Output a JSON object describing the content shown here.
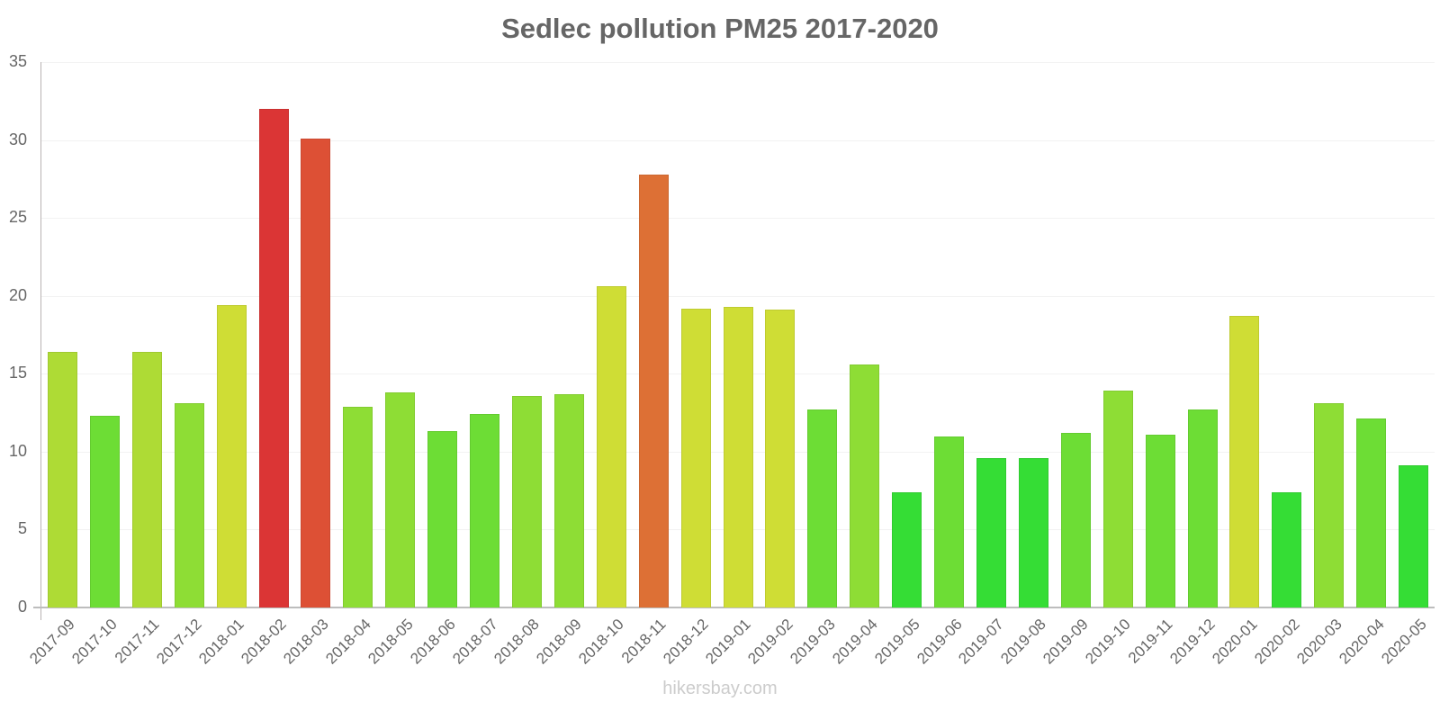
{
  "chart_data": {
    "type": "bar",
    "title": "Sedlec pollution PM25 2017-2020",
    "xlabel": "",
    "ylabel": "",
    "ylim": [
      0,
      35
    ],
    "yticks": [
      0,
      5,
      10,
      15,
      20,
      25,
      30,
      35
    ],
    "grid": true,
    "legend": null,
    "categories": [
      "2017-09",
      "2017-10",
      "2017-11",
      "2017-12",
      "2018-01",
      "2018-02",
      "2018-03",
      "2018-04",
      "2018-05",
      "2018-06",
      "2018-07",
      "2018-08",
      "2018-09",
      "2018-10",
      "2018-11",
      "2018-12",
      "2019-01",
      "2019-02",
      "2019-03",
      "2019-04",
      "2019-05",
      "2019-06",
      "2019-07",
      "2019-08",
      "2019-09",
      "2019-10",
      "2019-11",
      "2019-12",
      "2020-01",
      "2020-02",
      "2020-03",
      "2020-04",
      "2020-05"
    ],
    "values": [
      16.4,
      12.3,
      16.4,
      13.1,
      19.4,
      32.0,
      30.1,
      12.9,
      13.8,
      11.3,
      12.4,
      13.6,
      13.7,
      20.6,
      27.8,
      19.2,
      19.3,
      19.1,
      12.7,
      15.6,
      7.4,
      11.0,
      9.6,
      9.6,
      11.2,
      13.9,
      11.1,
      12.7,
      18.7,
      7.4,
      13.1,
      12.1,
      9.1
    ],
    "colors": [
      "#aedb35",
      "#6ddd35",
      "#aedb35",
      "#8edd35",
      "#cfdd35",
      "#db3535",
      "#dd5035",
      "#8edd35",
      "#8edd35",
      "#6ddd35",
      "#6ddd35",
      "#8edd35",
      "#8edd35",
      "#cfdd35",
      "#dd7035",
      "#cfdd35",
      "#cfdd35",
      "#cfdd35",
      "#6ddd35",
      "#8edd35",
      "#35dd35",
      "#6ddd35",
      "#35dd35",
      "#35dd35",
      "#6ddd35",
      "#8edd35",
      "#6ddd35",
      "#6ddd35",
      "#cfdd35",
      "#35dd35",
      "#8edd35",
      "#6ddd35",
      "#35dd35"
    ]
  },
  "watermark": "hikersbay.com"
}
